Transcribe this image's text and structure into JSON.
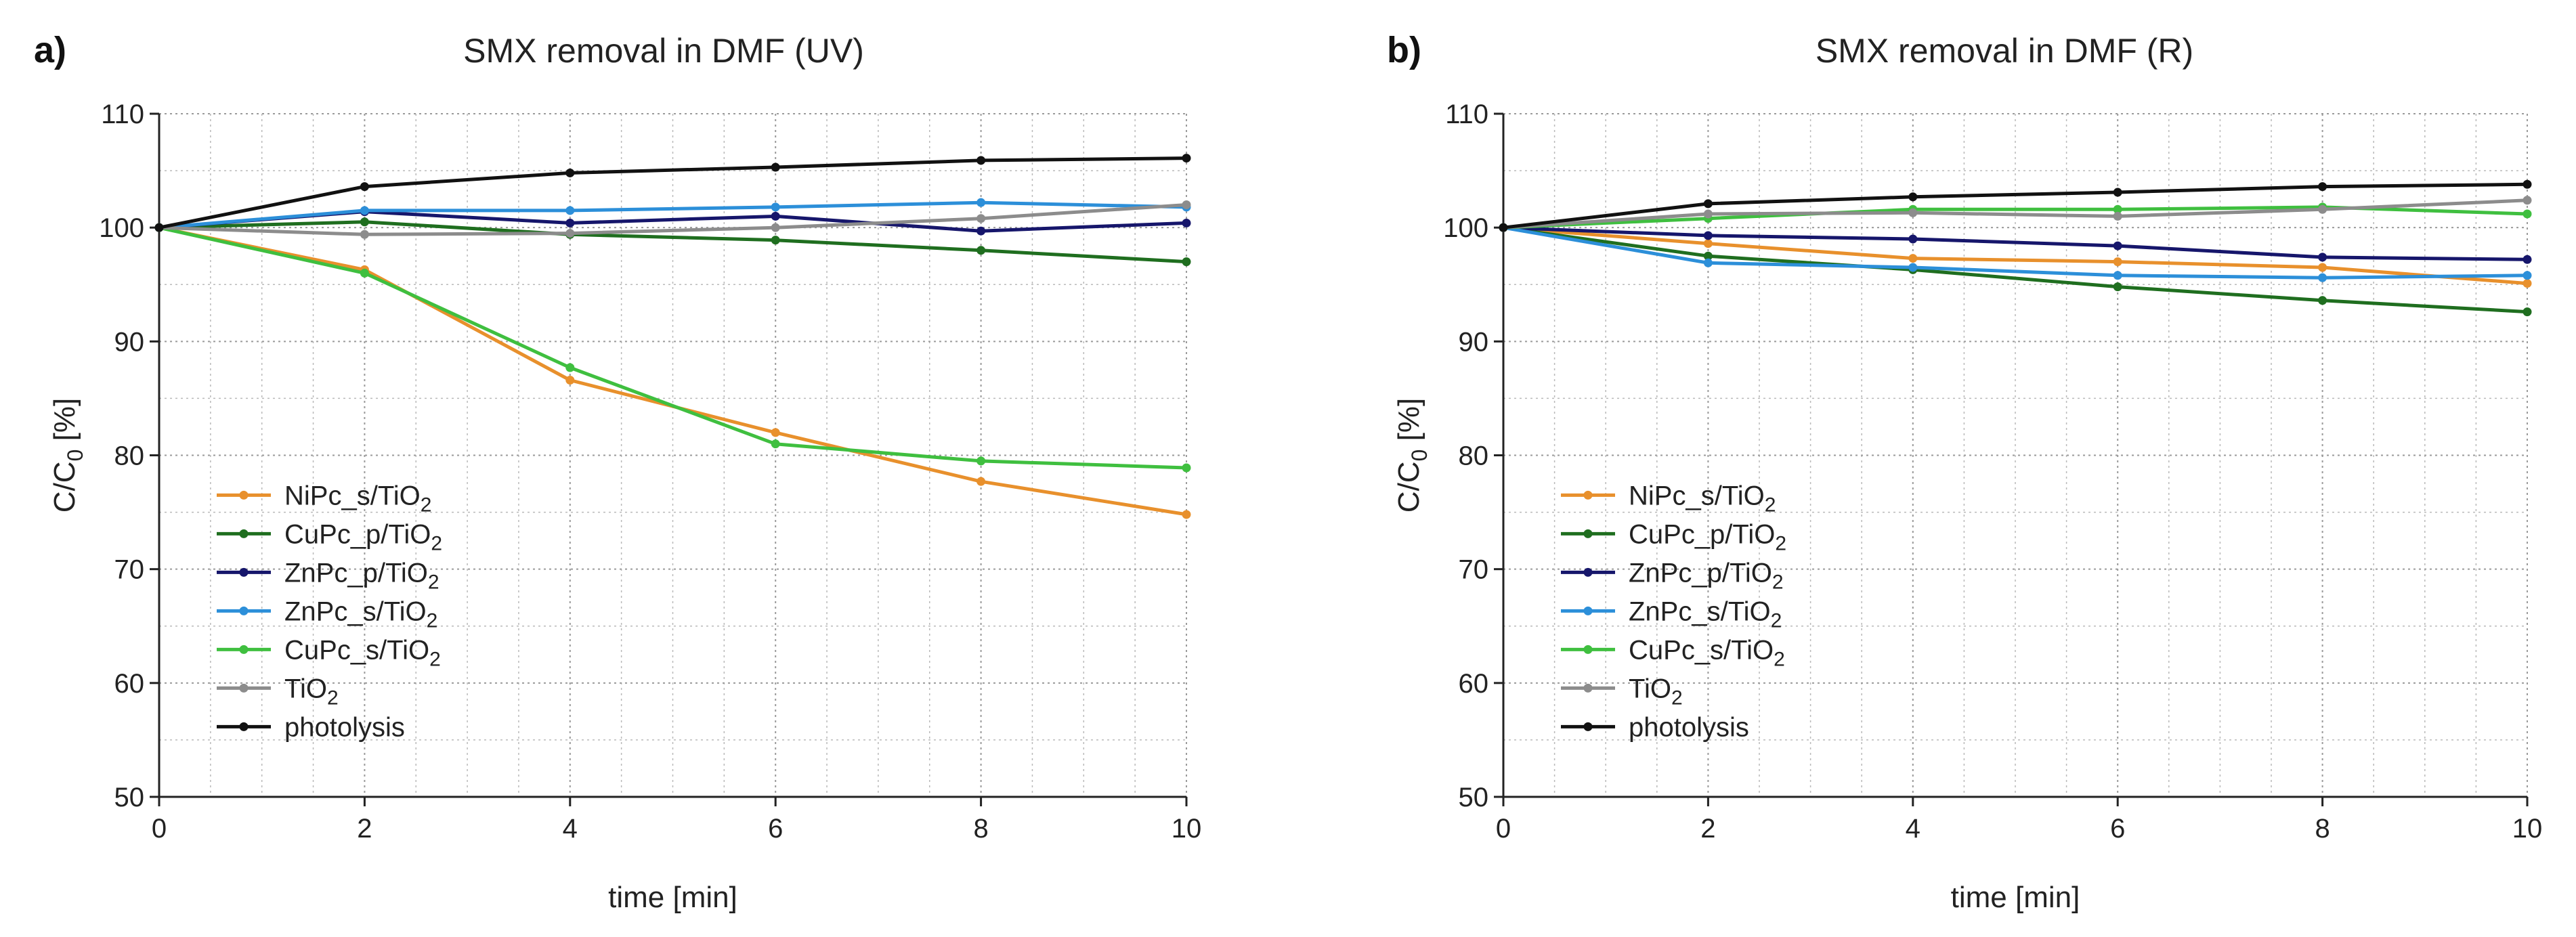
{
  "chart_data": [
    {
      "type": "line",
      "panel_label": "a)",
      "title": "SMX removal in DMF (UV)",
      "xlabel": "time [min]",
      "ylabel": "C/C0 [%]",
      "ylabel_main": "C/C",
      "ylabel_sub": "0",
      "ylabel_unit": " [%]",
      "xlim": [
        0,
        10
      ],
      "ylim": [
        50,
        110
      ],
      "xticks": [
        0,
        2,
        4,
        6,
        8,
        10
      ],
      "yticks": [
        50,
        60,
        70,
        80,
        90,
        100,
        110
      ],
      "grid": true,
      "legend_position": "lower-left",
      "x": [
        0,
        2,
        4,
        6,
        8,
        10
      ],
      "series": [
        {
          "name": "NiPc_s/TiO2",
          "label_main": "NiPc_s/TiO",
          "label_sub": "2",
          "color": "#e8902c",
          "values": [
            100,
            96.3,
            86.6,
            82.0,
            77.7,
            74.8
          ]
        },
        {
          "name": "CuPc_p/TiO2",
          "label_main": "CuPc_p/TiO",
          "label_sub": "2",
          "color": "#1f6e1f",
          "values": [
            100,
            100.5,
            99.4,
            98.9,
            98.0,
            97.0
          ]
        },
        {
          "name": "ZnPc_p/TiO2",
          "label_main": "ZnPc_p/TiO",
          "label_sub": "2",
          "color": "#16166b",
          "values": [
            100,
            101.4,
            100.4,
            101.0,
            99.7,
            100.4
          ]
        },
        {
          "name": "ZnPc_s/TiO2",
          "label_main": "ZnPc_s/TiO",
          "label_sub": "2",
          "color": "#2c8fd9",
          "values": [
            100,
            101.5,
            101.5,
            101.8,
            102.2,
            101.8
          ]
        },
        {
          "name": "CuPc_s/TiO2",
          "label_main": "CuPc_s/TiO",
          "label_sub": "2",
          "color": "#3fbf3f",
          "values": [
            100,
            96.0,
            87.7,
            81.0,
            79.5,
            78.9
          ]
        },
        {
          "name": "TiO2",
          "label_main": "TiO",
          "label_sub": "2",
          "color": "#8c8c8c",
          "values": [
            100,
            99.4,
            99.5,
            100.0,
            100.8,
            102.0
          ]
        },
        {
          "name": "photolysis",
          "label_main": "photolysis",
          "label_sub": "",
          "color": "#111111",
          "values": [
            100,
            103.6,
            104.8,
            105.3,
            105.9,
            106.1
          ]
        }
      ]
    },
    {
      "type": "line",
      "panel_label": "b)",
      "title": "SMX removal in DMF (R)",
      "xlabel": "time [min]",
      "ylabel": "C/C0 [%]",
      "ylabel_main": "C/C",
      "ylabel_sub": "0",
      "ylabel_unit": " [%]",
      "xlim": [
        0,
        10
      ],
      "ylim": [
        50,
        110
      ],
      "xticks": [
        0,
        2,
        4,
        6,
        8,
        10
      ],
      "yticks": [
        50,
        60,
        70,
        80,
        90,
        100,
        110
      ],
      "grid": true,
      "legend_position": "lower-left",
      "x": [
        0,
        2,
        4,
        6,
        8,
        10
      ],
      "series": [
        {
          "name": "NiPc_s/TiO2",
          "label_main": "NiPc_s/TiO",
          "label_sub": "2",
          "color": "#e8902c",
          "values": [
            100,
            98.6,
            97.3,
            97.0,
            96.5,
            95.1
          ]
        },
        {
          "name": "CuPc_p/TiO2",
          "label_main": "CuPc_p/TiO",
          "label_sub": "2",
          "color": "#1f6e1f",
          "values": [
            100,
            97.5,
            96.3,
            94.8,
            93.6,
            92.6
          ]
        },
        {
          "name": "ZnPc_p/TiO2",
          "label_main": "ZnPc_p/TiO",
          "label_sub": "2",
          "color": "#16166b",
          "values": [
            100,
            99.3,
            99.0,
            98.4,
            97.4,
            97.2
          ]
        },
        {
          "name": "ZnPc_s/TiO2",
          "label_main": "ZnPc_s/TiO",
          "label_sub": "2",
          "color": "#2c8fd9",
          "values": [
            100,
            96.9,
            96.5,
            95.8,
            95.6,
            95.8
          ]
        },
        {
          "name": "CuPc_s/TiO2",
          "label_main": "CuPc_s/TiO",
          "label_sub": "2",
          "color": "#3fbf3f",
          "values": [
            100,
            100.8,
            101.6,
            101.6,
            101.8,
            101.2
          ]
        },
        {
          "name": "TiO2",
          "label_main": "TiO",
          "label_sub": "2",
          "color": "#8c8c8c",
          "values": [
            100,
            101.2,
            101.3,
            101.0,
            101.6,
            102.4
          ]
        },
        {
          "name": "photolysis",
          "label_main": "photolysis",
          "label_sub": "",
          "color": "#111111",
          "values": [
            100,
            102.1,
            102.7,
            103.1,
            103.6,
            103.8
          ]
        }
      ]
    }
  ]
}
